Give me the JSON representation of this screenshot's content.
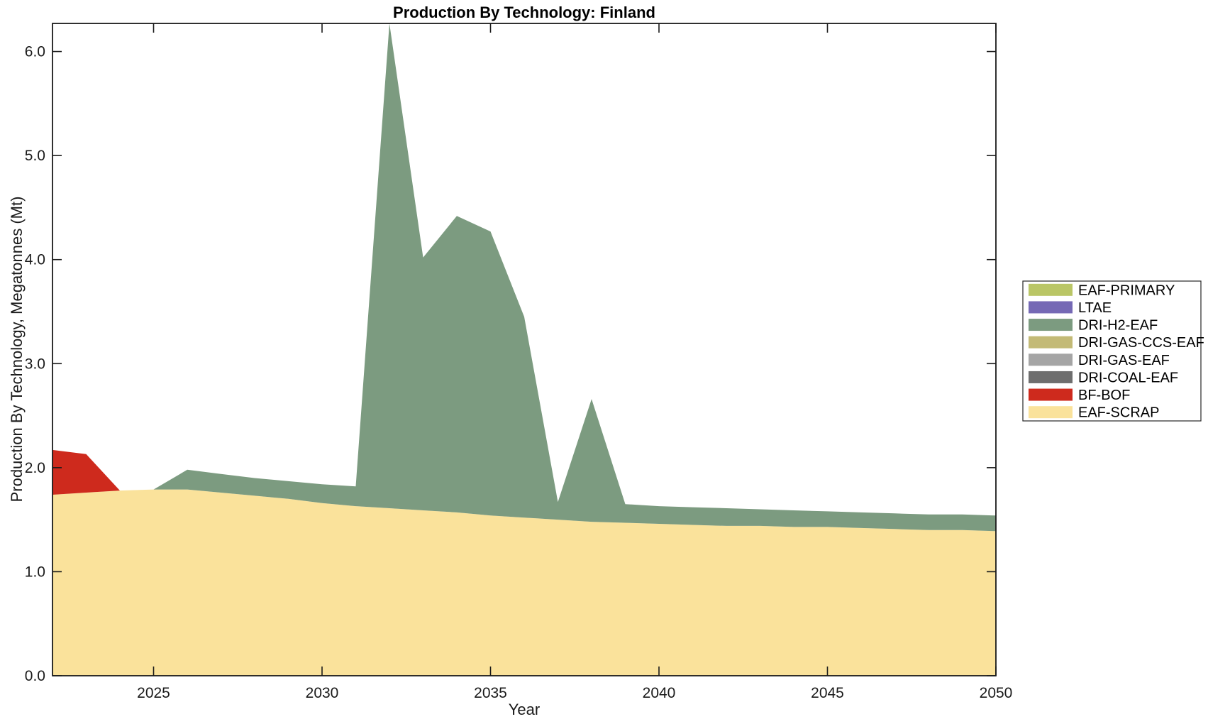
{
  "title": "Production By Technology: Finland",
  "x_axis": {
    "label": "Year",
    "tick_labels": [
      "2025",
      "2030",
      "2035",
      "2040",
      "2045",
      "2050"
    ],
    "tick_values": [
      2025,
      2030,
      2035,
      2040,
      2045,
      2050
    ]
  },
  "y_axis": {
    "label": "Production By Technology, Megatonnes (Mt)",
    "tick_labels": [
      "0.0",
      "1.0",
      "2.0",
      "3.0",
      "4.0",
      "5.0",
      "6.0"
    ],
    "tick_values": [
      0,
      1,
      2,
      3,
      4,
      5,
      6
    ]
  },
  "colors": {
    "axis": "#1a1a1a",
    "plot_background": "#ffffff",
    "legend_border": "#262626",
    "legend_background": "#ffffff"
  },
  "chart_data": {
    "type": "area",
    "stacked": true,
    "title": "Production By Technology: Finland",
    "xlabel": "Year",
    "ylabel": "Production By Technology, Megatonnes (Mt)",
    "xlim": [
      2022,
      2050
    ],
    "ylim": [
      0,
      6.27
    ],
    "grid": false,
    "legend_position": "outside-right",
    "legend_order_top_to_bottom": [
      "EAF-PRIMARY",
      "LTAE",
      "DRI-H2-EAF",
      "DRI-GAS-CCS-EAF",
      "DRI-GAS-EAF",
      "DRI-COAL-EAF",
      "BF-BOF",
      "EAF-SCRAP"
    ],
    "x": [
      2022,
      2023,
      2024,
      2025,
      2026,
      2027,
      2028,
      2029,
      2030,
      2031,
      2032,
      2033,
      2034,
      2035,
      2036,
      2037,
      2038,
      2039,
      2040,
      2041,
      2042,
      2043,
      2044,
      2045,
      2046,
      2047,
      2048,
      2049,
      2050
    ],
    "series": [
      {
        "name": "EAF-SCRAP",
        "color": "#FAE29B",
        "values": [
          1.74,
          1.76,
          1.78,
          1.79,
          1.79,
          1.76,
          1.73,
          1.7,
          1.66,
          1.63,
          1.61,
          1.59,
          1.57,
          1.54,
          1.52,
          1.5,
          1.48,
          1.47,
          1.46,
          1.45,
          1.44,
          1.44,
          1.43,
          1.43,
          1.42,
          1.41,
          1.4,
          1.4,
          1.39
        ]
      },
      {
        "name": "BF-BOF",
        "color": "#CE2A1D",
        "values": [
          0.43,
          0.37,
          0,
          0,
          0,
          0,
          0,
          0,
          0,
          0,
          0,
          0,
          0,
          0,
          0,
          0,
          0,
          0,
          0,
          0,
          0,
          0,
          0,
          0,
          0,
          0,
          0,
          0,
          0
        ]
      },
      {
        "name": "DRI-COAL-EAF",
        "color": "#6E6E6E",
        "values": [
          0,
          0,
          0,
          0,
          0,
          0,
          0,
          0,
          0,
          0,
          0,
          0,
          0,
          0,
          0,
          0,
          0,
          0,
          0,
          0,
          0,
          0,
          0,
          0,
          0,
          0,
          0,
          0,
          0
        ]
      },
      {
        "name": "DRI-GAS-EAF",
        "color": "#A5A5A5",
        "values": [
          0,
          0,
          0,
          0,
          0,
          0,
          0,
          0,
          0,
          0,
          0,
          0,
          0,
          0,
          0,
          0,
          0,
          0,
          0,
          0,
          0,
          0,
          0,
          0,
          0,
          0,
          0,
          0,
          0
        ]
      },
      {
        "name": "DRI-GAS-CCS-EAF",
        "color": "#C3BA76",
        "values": [
          0,
          0,
          0,
          0,
          0,
          0,
          0,
          0,
          0,
          0,
          0,
          0,
          0,
          0,
          0,
          0,
          0,
          0,
          0,
          0,
          0,
          0,
          0,
          0,
          0,
          0,
          0,
          0,
          0
        ]
      },
      {
        "name": "DRI-H2-EAF",
        "color": "#7C9B80",
        "values": [
          0,
          0,
          0,
          0,
          0.19,
          0.18,
          0.17,
          0.17,
          0.18,
          0.19,
          4.66,
          2.43,
          2.85,
          2.73,
          1.93,
          0.17,
          1.18,
          0.18,
          0.17,
          0.17,
          0.17,
          0.16,
          0.16,
          0.15,
          0.15,
          0.15,
          0.15,
          0.15,
          0.15
        ]
      },
      {
        "name": "LTAE",
        "color": "#7569B5",
        "values": [
          0,
          0,
          0,
          0,
          0,
          0,
          0,
          0,
          0,
          0,
          0,
          0,
          0,
          0,
          0,
          0,
          0,
          0,
          0,
          0,
          0,
          0,
          0,
          0,
          0,
          0,
          0,
          0,
          0
        ]
      },
      {
        "name": "EAF-PRIMARY",
        "color": "#BAC666",
        "values": [
          0,
          0,
          0,
          0,
          0,
          0,
          0,
          0,
          0,
          0,
          0,
          0,
          0,
          0,
          0,
          0,
          0,
          0,
          0,
          0,
          0,
          0,
          0,
          0,
          0,
          0,
          0,
          0,
          0
        ]
      }
    ]
  }
}
